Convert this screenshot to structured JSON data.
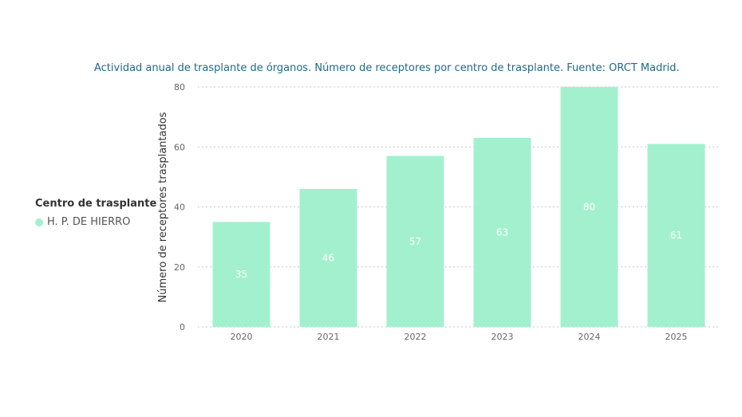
{
  "chart_data": {
    "type": "bar",
    "title": "Actividad anual de trasplante de órganos. Número de receptores por centro de trasplante. Fuente: ORCT Madrid.",
    "xlabel": "",
    "ylabel": "Número de receptores trasplantados",
    "categories": [
      "2020",
      "2021",
      "2022",
      "2023",
      "2024",
      "2025"
    ],
    "series": [
      {
        "name": "H. P. DE HIERRO",
        "values": [
          35,
          46,
          57,
          63,
          80,
          61
        ]
      }
    ],
    "ylim": [
      0,
      80
    ],
    "yticks": [
      "0",
      "20",
      "40",
      "60",
      "80"
    ],
    "grid": true,
    "data_labels": true,
    "legend": {
      "title": "Centro de trasplante",
      "placement": "left"
    }
  },
  "colors": {
    "bar": "#a3f0cf",
    "title": "#1d6a8a",
    "grid": "#c8c8c8",
    "label_inside": "#ffffff",
    "tick": "#666666"
  }
}
